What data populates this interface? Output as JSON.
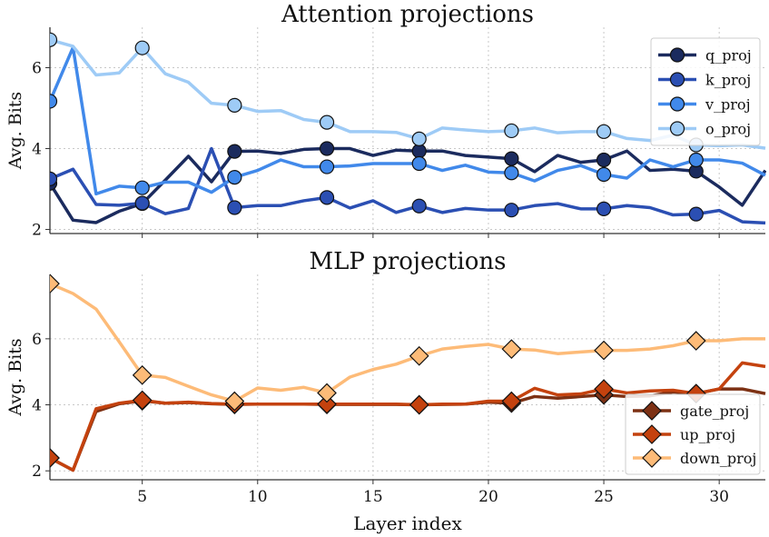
{
  "chart_data": [
    {
      "type": "line",
      "title": "Attention projections",
      "xlabel": "",
      "ylabel": "Avg. Bits",
      "xlim": [
        1,
        32
      ],
      "ylim": [
        1.9,
        7.0
      ],
      "xticks": [
        5,
        10,
        15,
        20,
        25,
        30
      ],
      "show_xticklabels": false,
      "yticks": [
        2,
        4,
        6
      ],
      "grid": true,
      "legend": "top-right",
      "marker": "circle",
      "marker_every_from_layer": [
        1,
        5,
        9,
        13,
        17,
        21,
        25,
        29
      ],
      "x": [
        1,
        2,
        3,
        4,
        5,
        6,
        7,
        8,
        9,
        10,
        11,
        12,
        13,
        14,
        15,
        16,
        17,
        18,
        19,
        20,
        21,
        22,
        23,
        24,
        25,
        26,
        27,
        28,
        29,
        30,
        31,
        32
      ],
      "series": [
        {
          "name": "q_proj",
          "color": "#1b2b5e",
          "values": [
            3.14,
            2.23,
            2.17,
            2.45,
            2.64,
            3.22,
            3.81,
            3.18,
            3.93,
            3.94,
            3.88,
            3.98,
            4.0,
            4.0,
            3.83,
            3.96,
            3.94,
            3.94,
            3.83,
            3.79,
            3.75,
            3.43,
            3.83,
            3.66,
            3.72,
            3.94,
            3.46,
            3.49,
            3.44,
            3.05,
            2.6,
            3.46
          ]
        },
        {
          "name": "k_proj",
          "color": "#2b4fb3",
          "values": [
            3.25,
            3.49,
            2.62,
            2.6,
            2.65,
            2.39,
            2.52,
            4.0,
            2.54,
            2.59,
            2.59,
            2.71,
            2.79,
            2.53,
            2.71,
            2.42,
            2.58,
            2.42,
            2.52,
            2.48,
            2.48,
            2.59,
            2.64,
            2.51,
            2.51,
            2.59,
            2.54,
            2.36,
            2.38,
            2.47,
            2.19,
            2.16
          ]
        },
        {
          "name": "v_proj",
          "color": "#4189ea",
          "values": [
            5.17,
            6.5,
            2.88,
            3.07,
            3.03,
            3.17,
            3.17,
            2.92,
            3.29,
            3.46,
            3.72,
            3.55,
            3.55,
            3.57,
            3.63,
            3.63,
            3.63,
            3.46,
            3.59,
            3.42,
            3.4,
            3.2,
            3.46,
            3.58,
            3.36,
            3.27,
            3.72,
            3.55,
            3.72,
            3.72,
            3.64,
            3.34
          ]
        },
        {
          "name": "o_proj",
          "color": "#9ecbf6",
          "values": [
            6.69,
            6.53,
            5.82,
            5.87,
            6.49,
            5.85,
            5.64,
            5.12,
            5.07,
            4.92,
            4.94,
            4.72,
            4.65,
            4.42,
            4.42,
            4.4,
            4.24,
            4.51,
            4.46,
            4.42,
            4.44,
            4.51,
            4.39,
            4.42,
            4.42,
            4.25,
            4.2,
            4.33,
            4.09,
            4.07,
            4.09,
            4.01
          ]
        }
      ]
    },
    {
      "type": "line",
      "title": "MLP projections",
      "xlabel": "Layer index",
      "ylabel": "Avg. Bits",
      "xlim": [
        1,
        32
      ],
      "ylim": [
        1.73,
        7.95
      ],
      "xticks": [
        5,
        10,
        15,
        20,
        25,
        30
      ],
      "show_xticklabels": true,
      "yticks": [
        2,
        4,
        6
      ],
      "grid": true,
      "legend": "bottom-right",
      "marker": "diamond",
      "marker_every_from_layer": [
        1,
        5,
        9,
        13,
        17,
        21,
        25,
        29
      ],
      "x": [
        1,
        2,
        3,
        4,
        5,
        6,
        7,
        8,
        9,
        10,
        11,
        12,
        13,
        14,
        15,
        16,
        17,
        18,
        19,
        20,
        21,
        22,
        23,
        24,
        25,
        26,
        27,
        28,
        29,
        30,
        31,
        32
      ],
      "series": [
        {
          "name": "gate_proj",
          "color": "#7d3114",
          "values": [
            2.39,
            2.02,
            3.8,
            4.03,
            4.12,
            4.05,
            4.07,
            4.03,
            4.01,
            4.02,
            4.02,
            4.02,
            4.01,
            4.01,
            4.01,
            4.01,
            4.0,
            4.01,
            4.02,
            4.08,
            4.05,
            4.25,
            4.2,
            4.25,
            4.3,
            4.25,
            4.27,
            4.39,
            4.34,
            4.48,
            4.48,
            4.34
          ]
        },
        {
          "name": "up_proj",
          "color": "#c4420e",
          "values": [
            2.39,
            2.02,
            3.88,
            4.05,
            4.14,
            4.05,
            4.08,
            4.04,
            4.02,
            4.02,
            4.02,
            4.02,
            4.02,
            4.02,
            4.02,
            4.02,
            4.0,
            4.02,
            4.02,
            4.11,
            4.11,
            4.5,
            4.3,
            4.33,
            4.48,
            4.36,
            4.42,
            4.44,
            4.34,
            4.48,
            5.27,
            5.16
          ]
        },
        {
          "name": "down_proj",
          "color": "#fdbb78",
          "values": [
            7.67,
            7.37,
            6.9,
            5.91,
            4.9,
            4.83,
            4.56,
            4.3,
            4.11,
            4.51,
            4.44,
            4.53,
            4.36,
            4.84,
            5.07,
            5.23,
            5.48,
            5.69,
            5.77,
            5.83,
            5.69,
            5.66,
            5.55,
            5.6,
            5.65,
            5.65,
            5.69,
            5.79,
            5.94,
            5.94,
            6.0,
            6.0
          ]
        }
      ]
    }
  ]
}
